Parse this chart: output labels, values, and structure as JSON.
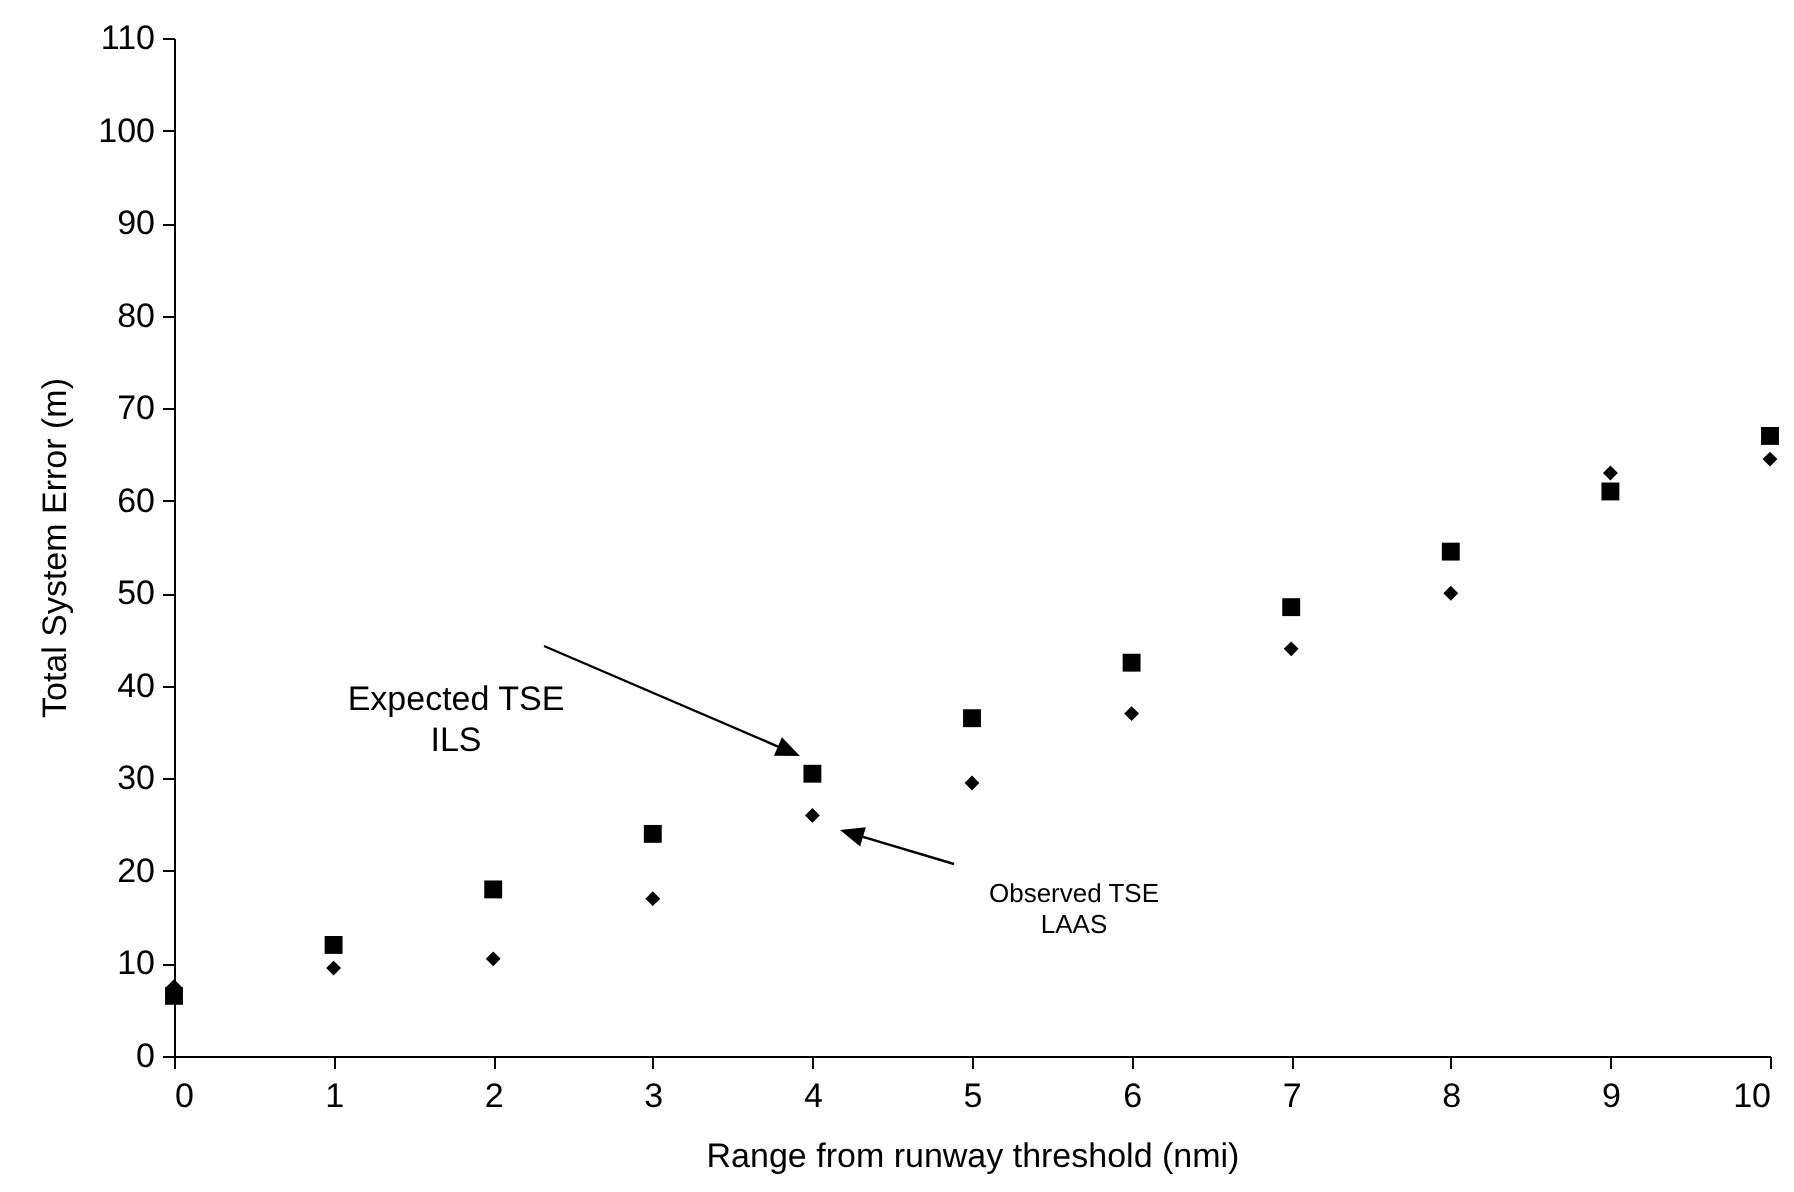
{
  "chart_data": {
    "type": "scatter",
    "xlabel": "Range from runway threshold (nmi)",
    "ylabel": "Total System Error (m)",
    "x": [
      0,
      1,
      2,
      3,
      4,
      5,
      6,
      7,
      8,
      9,
      10
    ],
    "series": [
      {
        "color": "#000000",
        "marker": "square",
        "values": [
          6.5,
          12,
          18,
          24,
          30.5,
          36.5,
          42.5,
          48.5,
          54.5,
          61,
          67
        ]
      },
      {
        "color": "#000000",
        "marker": "diamond",
        "values": [
          7.5,
          9.5,
          10.5,
          17,
          26,
          29.5,
          37,
          44,
          50,
          63,
          64.5
        ]
      }
    ],
    "xlim": [
      0,
      10
    ],
    "xticks": [
      0,
      1,
      2,
      3,
      4,
      5,
      6,
      7,
      8,
      9,
      10
    ],
    "ylim": [
      0,
      110
    ],
    "yticks": [
      0,
      10,
      20,
      30,
      40,
      50,
      60,
      70,
      80,
      90,
      100,
      110
    ],
    "grid": false,
    "annotations": [
      "Expected TSE\nILS",
      "Observed TSE\nLAAS"
    ]
  }
}
